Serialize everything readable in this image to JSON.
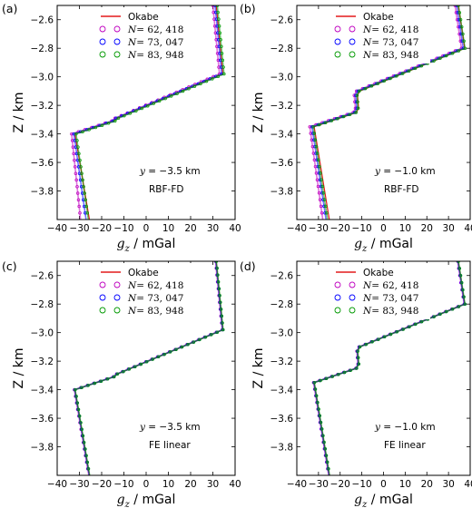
{
  "chart_data": [
    {
      "panel_label": "(a)",
      "type": "line",
      "xlabel_var": "g",
      "xlabel_sub": "z",
      "xlabel_unit": " / mGal",
      "ylabel": "Z / km",
      "xlim": [
        -40,
        40
      ],
      "ylim": [
        -4.0,
        -2.5
      ],
      "xticks": [
        "−40",
        "−30",
        "−20",
        "−10",
        "0",
        "10",
        "20",
        "30",
        "40"
      ],
      "yticks": [
        "−2.6",
        "−2.8",
        "−3.0",
        "−3.2",
        "−3.4",
        "−3.6",
        "−3.8"
      ],
      "annotation_var": "y",
      "annotation_value": " = −3.5 km",
      "method": "RBF-FD",
      "legend": [
        "Okabe",
        "= 62, 418",
        "= 73, 047",
        "= 83, 948"
      ],
      "legend_position": "top-right",
      "series": [
        {
          "name": "Okabe",
          "x": [
            31.5,
            34.5,
            -13,
            -14.5,
            -32,
            -25.5
          ],
          "y": [
            -2.5,
            -2.98,
            -3.29,
            -3.31,
            -3.4,
            -4.0
          ]
        },
        {
          "name": "N = 62, 418",
          "x": [
            30.0,
            33.0,
            -14,
            -15.5,
            -33.5,
            -29.5
          ],
          "y": [
            -2.5,
            -2.98,
            -3.29,
            -3.31,
            -3.4,
            -4.0
          ]
        },
        {
          "name": "N = 73, 047",
          "x": [
            31.0,
            34.0,
            -13.5,
            -15,
            -32.5,
            -27.0
          ],
          "y": [
            -2.5,
            -2.98,
            -3.29,
            -3.31,
            -3.4,
            -4.0
          ]
        },
        {
          "name": "N = 83, 948",
          "x": [
            32.0,
            35.0,
            -12.5,
            -14,
            -31.5,
            -26.0
          ],
          "y": [
            -2.5,
            -2.98,
            -3.29,
            -3.31,
            -3.4,
            -4.0
          ]
        }
      ]
    },
    {
      "panel_label": "(b)",
      "type": "line",
      "xlabel_var": "g",
      "xlabel_sub": "z",
      "xlabel_unit": " / mGal",
      "ylabel": "Z / km",
      "xlim": [
        -40,
        40
      ],
      "ylim": [
        -4.0,
        -2.5
      ],
      "xticks": [
        "−40",
        "−30",
        "−20",
        "−10",
        "0",
        "10",
        "20",
        "30",
        "40"
      ],
      "yticks": [
        "−2.6",
        "−2.8",
        "−3.0",
        "−3.2",
        "−3.4",
        "−3.6",
        "−3.8"
      ],
      "annotation_var": "y",
      "annotation_value": " = −1.0 km",
      "method": "RBF-FD",
      "legend": [
        "Okabe",
        "= 62, 418",
        "= 73, 047",
        "= 83, 948"
      ],
      "legend_position": "top-right",
      "series": [
        {
          "name": "Okabe",
          "x": [
            34.5,
            37.5,
            -11,
            -12,
            -11.5,
            -12.5,
            -32,
            -25
          ],
          "y": [
            -2.5,
            -2.8,
            -3.1,
            -3.13,
            -3.22,
            -3.25,
            -3.35,
            -4.0
          ]
        },
        {
          "name": "N = 62, 418",
          "x": [
            33.0,
            36.0,
            -12.5,
            -13.5,
            -13,
            -14,
            -34,
            -28
          ],
          "y": [
            -2.5,
            -2.8,
            -3.1,
            -3.13,
            -3.22,
            -3.25,
            -3.35,
            -4.0
          ]
        },
        {
          "name": "N = 73, 047",
          "x": [
            33.8,
            36.8,
            -11.8,
            -12.8,
            -12.3,
            -13.3,
            -33,
            -26.5
          ],
          "y": [
            -2.5,
            -2.8,
            -3.1,
            -3.13,
            -3.22,
            -3.25,
            -3.35,
            -4.0
          ]
        },
        {
          "name": "N = 83, 948",
          "x": [
            34.6,
            37.6,
            -11.2,
            -12.2,
            -11.7,
            -12.7,
            -32.4,
            -25.8
          ],
          "y": [
            -2.5,
            -2.8,
            -3.1,
            -3.13,
            -3.22,
            -3.25,
            -3.35,
            -4.0
          ]
        }
      ]
    },
    {
      "panel_label": "(c)",
      "type": "line",
      "xlabel_var": "g",
      "xlabel_sub": "z",
      "xlabel_unit": " / mGal",
      "ylabel": "Z / km",
      "xlim": [
        -40,
        40
      ],
      "ylim": [
        -4.0,
        -2.5
      ],
      "xticks": [
        "−40",
        "−30",
        "−20",
        "−10",
        "0",
        "10",
        "20",
        "30",
        "40"
      ],
      "yticks": [
        "−2.6",
        "−2.8",
        "−3.0",
        "−3.2",
        "−3.4",
        "−3.6",
        "−3.8"
      ],
      "annotation_var": "y",
      "annotation_value": " = −3.5 km",
      "method": "FE linear",
      "legend": [
        "Okabe",
        "= 62, 418",
        "= 73, 047",
        "= 83, 948"
      ],
      "legend_position": "top-right",
      "series": [
        {
          "name": "Okabe",
          "x": [
            31.5,
            34.5,
            -13,
            -14.5,
            -32,
            -25.5
          ],
          "y": [
            -2.5,
            -2.98,
            -3.29,
            -3.31,
            -3.4,
            -4.0
          ]
        },
        {
          "name": "N = 62, 418",
          "x": [
            31.2,
            34.2,
            -13.3,
            -14.8,
            -32.3,
            -25.8
          ],
          "y": [
            -2.5,
            -2.98,
            -3.29,
            -3.31,
            -3.4,
            -4.0
          ]
        },
        {
          "name": "N = 73, 047",
          "x": [
            31.4,
            34.4,
            -13.1,
            -14.6,
            -32.1,
            -25.6
          ],
          "y": [
            -2.5,
            -2.98,
            -3.29,
            -3.31,
            -3.4,
            -4.0
          ]
        },
        {
          "name": "N = 83, 948",
          "x": [
            31.6,
            34.6,
            -12.9,
            -14.4,
            -31.9,
            -25.4
          ],
          "y": [
            -2.5,
            -2.98,
            -3.29,
            -3.31,
            -3.4,
            -4.0
          ]
        }
      ]
    },
    {
      "panel_label": "(d)",
      "type": "line",
      "xlabel_var": "g",
      "xlabel_sub": "z",
      "xlabel_unit": " / mGal",
      "ylabel": "Z / km",
      "xlim": [
        -40,
        40
      ],
      "ylim": [
        -4.0,
        -2.5
      ],
      "xticks": [
        "−40",
        "−30",
        "−20",
        "−10",
        "0",
        "10",
        "20",
        "30",
        "40"
      ],
      "yticks": [
        "−2.6",
        "−2.8",
        "−3.0",
        "−3.2",
        "−3.4",
        "−3.6",
        "−3.8"
      ],
      "annotation_var": "y",
      "annotation_value": " = −1.0 km",
      "method": "FE linear",
      "legend": [
        "Okabe",
        "= 62, 418",
        "= 73, 047",
        "= 83, 948"
      ],
      "legend_position": "top-right",
      "series": [
        {
          "name": "Okabe",
          "x": [
            34.5,
            37.5,
            -11,
            -12,
            -11.5,
            -12.5,
            -32,
            -25
          ],
          "y": [
            -2.5,
            -2.8,
            -3.1,
            -3.13,
            -3.22,
            -3.25,
            -3.35,
            -4.0
          ]
        },
        {
          "name": "N = 62, 418",
          "x": [
            34.2,
            37.2,
            -11.3,
            -12.3,
            -11.8,
            -12.8,
            -32.3,
            -25.3
          ],
          "y": [
            -2.5,
            -2.8,
            -3.1,
            -3.13,
            -3.22,
            -3.25,
            -3.35,
            -4.0
          ]
        },
        {
          "name": "N = 73, 047",
          "x": [
            34.4,
            37.4,
            -11.1,
            -12.1,
            -11.6,
            -12.6,
            -32.1,
            -25.1
          ],
          "y": [
            -2.5,
            -2.8,
            -3.1,
            -3.13,
            -3.22,
            -3.25,
            -3.35,
            -4.0
          ]
        },
        {
          "name": "N = 83, 948",
          "x": [
            34.6,
            37.6,
            -10.9,
            -11.9,
            -11.4,
            -12.4,
            -31.9,
            -24.9
          ],
          "y": [
            -2.5,
            -2.8,
            -3.1,
            -3.13,
            -3.22,
            -3.25,
            -3.35,
            -4.0
          ]
        }
      ]
    }
  ],
  "colors": {
    "okabe": "#e41a1c",
    "n62418": "#bf00bf",
    "n73047": "#0000ff",
    "n83948": "#009900"
  },
  "legend_var": "N"
}
